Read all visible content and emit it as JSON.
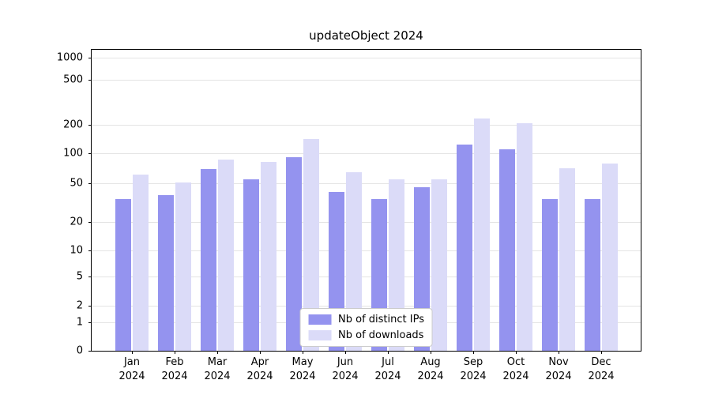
{
  "chart_data": {
    "type": "bar",
    "title": "updateObject 2024",
    "categories": [
      "Jan 2024",
      "Feb 2024",
      "Mar 2024",
      "Apr 2024",
      "May 2024",
      "Jun 2024",
      "Jul 2024",
      "Aug 2024",
      "Sep 2024",
      "Oct 2024",
      "Nov 2024",
      "Dec 2024"
    ],
    "series": [
      {
        "name": "Nb of distinct IPs",
        "color": "#9493ef",
        "values": [
          38,
          41,
          74,
          56,
          93,
          43,
          38,
          47,
          130,
          113,
          38,
          38
        ]
      },
      {
        "name": "Nb of downloads",
        "color": "#dbdbf8",
        "values": [
          65,
          51,
          90,
          85,
          150,
          68,
          56,
          57,
          240,
          210,
          75,
          83
        ]
      }
    ],
    "yticks": [
      0,
      1,
      2,
      5,
      10,
      20,
      50,
      100,
      200,
      500,
      1000
    ],
    "ylim": [
      0,
      1000
    ],
    "yscale": "symlog",
    "xlabel": "",
    "ylabel": "",
    "grid": "horizontal",
    "legend_position": "lower center",
    "colors": {
      "background": "#ffffff",
      "gridline": "#e4e4e4",
      "axis": "#000000",
      "legend_border": "#cccccc"
    }
  }
}
